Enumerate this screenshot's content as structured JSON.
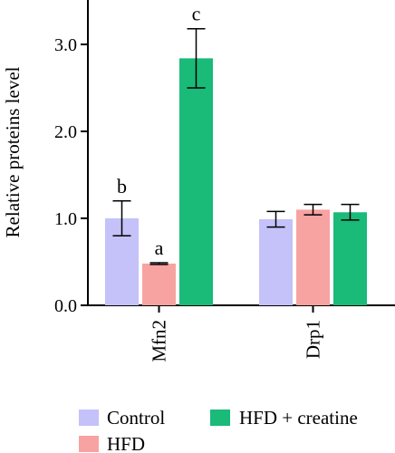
{
  "chart_data": {
    "type": "bar",
    "categories": [
      "Mfn2",
      "Drp1"
    ],
    "series": [
      {
        "name": "Control",
        "color": "#c4c2f8",
        "values": [
          1.0,
          0.99
        ],
        "errors": [
          0.2,
          0.09
        ],
        "labels": [
          "b",
          ""
        ]
      },
      {
        "name": "HFD",
        "color": "#f7a3a1",
        "values": [
          0.48,
          1.1
        ],
        "errors": [
          0.01,
          0.06
        ],
        "labels": [
          "a",
          ""
        ]
      },
      {
        "name": "HFD + creatine",
        "color": "#1aba79",
        "values": [
          2.84,
          1.07
        ],
        "errors": [
          0.34,
          0.09
        ],
        "labels": [
          "c",
          ""
        ]
      }
    ],
    "ylabel": "Relative proteins level",
    "xlabel": "",
    "ylim": [
      0,
      3.4
    ],
    "yticks": [
      "0.0",
      "1.0",
      "2.0",
      "3.0"
    ],
    "ytick_values": [
      0,
      1,
      2,
      3
    ],
    "grid": false,
    "legend_position": "bottom"
  }
}
